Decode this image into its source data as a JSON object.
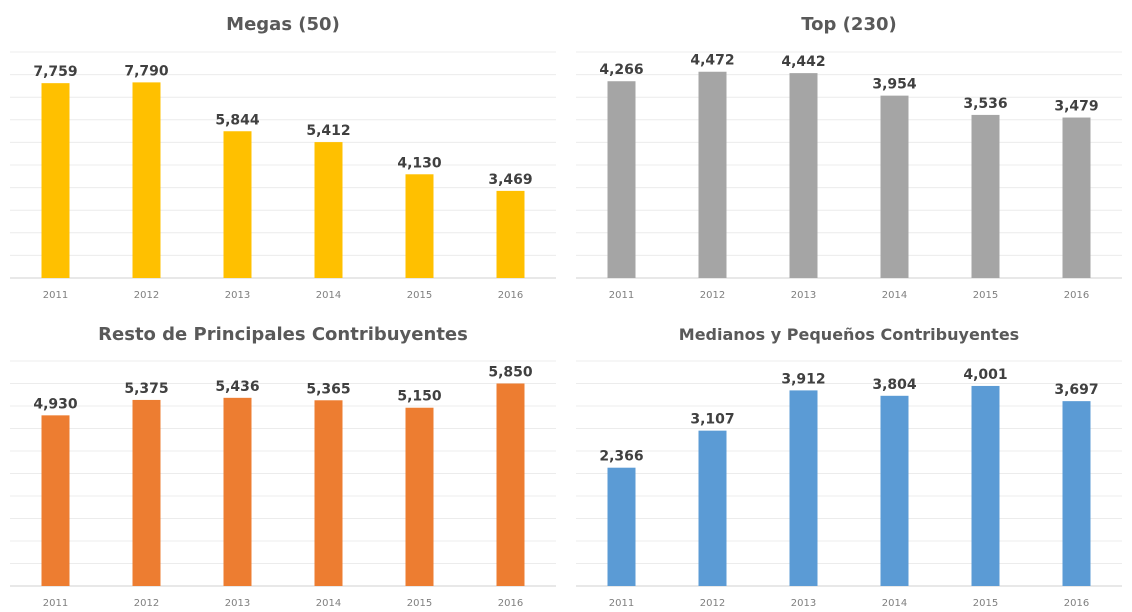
{
  "chart_data": [
    {
      "type": "bar",
      "title": "Megas (50)",
      "categories": [
        "2011",
        "2012",
        "2013",
        "2014",
        "2015",
        "2016"
      ],
      "values": [
        7759,
        7790,
        5844,
        5412,
        4130,
        3469
      ],
      "value_labels": [
        "7,759",
        "7,790",
        "5,844",
        "5,412",
        "4,130",
        "3,469"
      ],
      "color": "#FFC000",
      "ylim": [
        0,
        9000
      ],
      "grid": true
    },
    {
      "type": "bar",
      "title": "Top  (230)",
      "categories": [
        "2011",
        "2012",
        "2013",
        "2014",
        "2015",
        "2016"
      ],
      "values": [
        4266,
        4472,
        4442,
        3954,
        3536,
        3479
      ],
      "value_labels": [
        "4,266",
        "4,472",
        "4,442",
        "3,954",
        "3,536",
        "3,479"
      ],
      "color": "#A5A5A5",
      "ylim": [
        0,
        4900
      ],
      "grid": true
    },
    {
      "type": "bar",
      "title": "Resto de Principales Contribuyentes",
      "categories": [
        "2011",
        "2012",
        "2013",
        "2014",
        "2015",
        "2016"
      ],
      "values": [
        4930,
        5375,
        5436,
        5365,
        5150,
        5850
      ],
      "value_labels": [
        "4,930",
        "5,375",
        "5,436",
        "5,365",
        "5,150",
        "5,850"
      ],
      "color": "#ED7D31",
      "ylim": [
        0,
        6500
      ],
      "grid": true
    },
    {
      "type": "bar",
      "title": "Medianos y Pequeños Contribuyentes",
      "categories": [
        "2011",
        "2012",
        "2013",
        "2014",
        "2015",
        "2016"
      ],
      "values": [
        2366,
        3107,
        3912,
        3804,
        4001,
        3697
      ],
      "value_labels": [
        "2,366",
        "3,107",
        "3,912",
        "3,804",
        "4,001",
        "3,697"
      ],
      "color": "#5B9BD5",
      "ylim": [
        0,
        4500
      ],
      "grid": true
    }
  ]
}
